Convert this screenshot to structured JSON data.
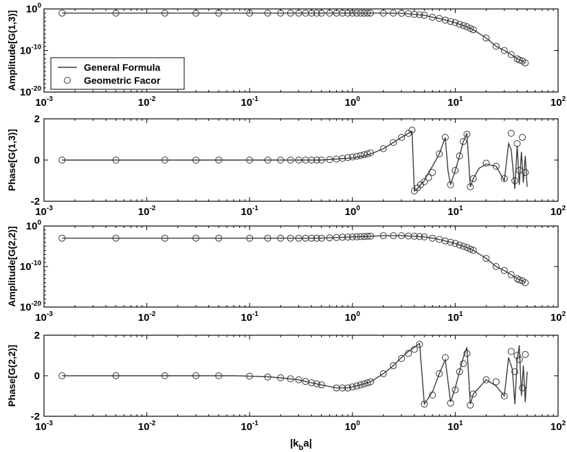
{
  "chart_data": [
    {
      "type": "line",
      "ylabel": "Amplitude[G(1,3)]",
      "xlabel": "",
      "xscale": "log",
      "yscale": "log",
      "xlim": [
        0.001,
        100
      ],
      "ylim": [
        1e-20,
        1
      ],
      "x_ticks": [
        "10-3",
        "10-2",
        "10-1",
        "100",
        "101",
        "102"
      ],
      "y_ticks": [
        "10-20",
        "10-10",
        "100"
      ],
      "grid": false,
      "legend": {
        "position": "bottom-left",
        "entries": [
          "General Formula",
          "Geometric Facor"
        ]
      },
      "series": [
        {
          "name": "General Formula",
          "style": "line",
          "x": [
            0.0015,
            0.005,
            0.015,
            0.03,
            0.05,
            0.1,
            0.2,
            0.3,
            0.4,
            0.5,
            0.7,
            1.0,
            1.5,
            2.0,
            3.0,
            4.0,
            5.0,
            6.0,
            7.0,
            8.0,
            9.0,
            10.0,
            11.0,
            12.0,
            13.0,
            14.0,
            15.0,
            20.0,
            25.0,
            30.0,
            35.0,
            40.0,
            45.0,
            48.0
          ],
          "y": [
            0.1,
            0.1,
            0.1,
            0.1,
            0.1,
            0.1,
            0.1,
            0.1,
            0.1,
            0.1,
            0.1,
            0.1,
            0.1,
            0.1,
            0.09,
            0.05,
            0.03,
            0.01,
            0.005,
            0.002,
            0.001,
            0.0005,
            0.0002,
            0.0001,
            5e-05,
            2e-05,
            1e-05,
            1e-07,
            1e-09,
            1e-10,
            1e-11,
            1e-12,
            3e-13,
            1e-13
          ]
        },
        {
          "name": "Geometric Facor",
          "style": "marker",
          "x": [
            0.0015,
            0.005,
            0.015,
            0.03,
            0.05,
            0.1,
            0.15,
            0.2,
            0.25,
            0.3,
            0.35,
            0.4,
            0.45,
            0.5,
            0.6,
            0.7,
            0.8,
            0.9,
            1.0,
            1.1,
            1.2,
            1.3,
            1.4,
            1.5,
            2.0,
            2.5,
            3.0,
            3.5,
            4.0,
            4.5,
            5.0,
            6.0,
            7.0,
            8.0,
            9.0,
            10.0,
            11.0,
            12.0,
            13.0,
            14.0,
            15.0,
            20.0,
            25.0,
            30.0,
            35.0,
            40.0,
            42.0,
            45.0,
            48.0
          ],
          "y": [
            0.1,
            0.1,
            0.1,
            0.1,
            0.1,
            0.1,
            0.1,
            0.1,
            0.1,
            0.1,
            0.1,
            0.1,
            0.1,
            0.1,
            0.1,
            0.1,
            0.1,
            0.1,
            0.1,
            0.1,
            0.1,
            0.1,
            0.1,
            0.1,
            0.1,
            0.1,
            0.09,
            0.07,
            0.05,
            0.04,
            0.03,
            0.01,
            0.005,
            0.002,
            0.001,
            0.0005,
            0.0002,
            0.0001,
            5e-05,
            2e-05,
            1e-05,
            1e-07,
            1e-09,
            1e-10,
            1e-11,
            1e-12,
            5e-13,
            3e-13,
            1e-13
          ]
        }
      ]
    },
    {
      "type": "line",
      "ylabel": "Phase[G(1,3)]",
      "xlabel": "",
      "xscale": "log",
      "yscale": "linear",
      "xlim": [
        0.001,
        100
      ],
      "ylim": [
        -2,
        2
      ],
      "x_ticks": [
        "10-3",
        "10-2",
        "10-1",
        "100",
        "101",
        "102"
      ],
      "y_ticks": [
        "-2",
        "0",
        "2"
      ],
      "grid": false,
      "series": [
        {
          "name": "General Formula",
          "style": "line",
          "x": [
            0.0015,
            0.005,
            0.015,
            0.03,
            0.05,
            0.1,
            0.2,
            0.3,
            0.4,
            0.5,
            0.7,
            1.0,
            1.3,
            1.6,
            2.0,
            2.5,
            3.0,
            3.5,
            3.8,
            4.0,
            4.3,
            4.6,
            5.0,
            5.5,
            6.0,
            7.0,
            8.0,
            8.5,
            9.0,
            10.0,
            11.0,
            12.0,
            13.0,
            14.0,
            15.0,
            17.0,
            20.0,
            25.0,
            30.0,
            33.0,
            35.0,
            38.0,
            40.0,
            42.0,
            44.0,
            46.0,
            48.0,
            50.0
          ],
          "y": [
            0,
            0,
            0,
            0,
            0,
            0,
            0,
            0,
            0,
            0,
            0.05,
            0.1,
            0.2,
            0.35,
            0.55,
            0.85,
            1.1,
            1.3,
            1.4,
            -1.5,
            -1.4,
            -1.2,
            -1.0,
            -0.6,
            -0.3,
            0.3,
            1.1,
            -0.5,
            -1.2,
            -0.5,
            0.2,
            0.9,
            1.3,
            -1.3,
            -0.9,
            -0.4,
            -0.2,
            -0.3,
            -1.0,
            0.8,
            0.5,
            -1.4,
            0.7,
            -1.2,
            0.4,
            -1.1,
            0.2,
            -1.3
          ]
        },
        {
          "name": "Geometric Facor",
          "style": "marker",
          "x": [
            0.0015,
            0.005,
            0.015,
            0.03,
            0.05,
            0.1,
            0.15,
            0.2,
            0.25,
            0.3,
            0.35,
            0.4,
            0.45,
            0.5,
            0.6,
            0.7,
            0.8,
            0.9,
            1.0,
            1.1,
            1.2,
            1.3,
            1.4,
            1.5,
            2.0,
            2.5,
            3.0,
            3.5,
            3.8,
            4.0,
            4.3,
            4.6,
            5.0,
            5.5,
            6.0,
            7.0,
            8.0,
            9.0,
            10.0,
            11.0,
            12.0,
            13.0,
            14.0,
            15.0,
            20.0,
            25.0,
            30.0,
            35.0,
            38.0,
            40.0,
            42.0,
            45.0,
            48.0
          ],
          "y": [
            0,
            0,
            0,
            0,
            0,
            0,
            0,
            0,
            0,
            0,
            0,
            0,
            0,
            0,
            0.02,
            0.05,
            0.08,
            0.12,
            0.15,
            0.18,
            0.22,
            0.26,
            0.3,
            0.35,
            0.55,
            0.85,
            1.1,
            1.3,
            1.45,
            -1.5,
            -1.35,
            -1.2,
            -1.05,
            -0.85,
            -0.6,
            0.3,
            1.1,
            -1.2,
            -0.5,
            0.2,
            0.9,
            1.25,
            -1.3,
            -0.9,
            -0.15,
            -0.3,
            -0.9,
            1.3,
            -1.0,
            0.8,
            -0.5,
            1.1,
            -0.6
          ]
        }
      ]
    },
    {
      "type": "line",
      "ylabel": "Amplitude[G(2,2)]",
      "xlabel": "",
      "xscale": "log",
      "yscale": "log",
      "xlim": [
        0.001,
        100
      ],
      "ylim": [
        1e-20,
        1
      ],
      "x_ticks": [
        "10-3",
        "10-2",
        "10-1",
        "100",
        "101",
        "102"
      ],
      "y_ticks": [
        "10-20",
        "10-10",
        "100"
      ],
      "grid": false,
      "series": [
        {
          "name": "General Formula",
          "style": "line",
          "x": [
            0.0015,
            0.005,
            0.015,
            0.03,
            0.05,
            0.1,
            0.2,
            0.3,
            0.5,
            0.7,
            1.0,
            1.5,
            2.0,
            3.0,
            4.0,
            5.0,
            6.0,
            7.0,
            8.0,
            9.0,
            10.0,
            11.0,
            12.0,
            13.0,
            14.0,
            15.0,
            20.0,
            25.0,
            30.0,
            35.0,
            40.0,
            45.0,
            48.0
          ],
          "y": [
            0.001,
            0.001,
            0.001,
            0.001,
            0.001,
            0.001,
            0.001,
            0.001,
            0.001,
            0.0015,
            0.002,
            0.003,
            0.004,
            0.004,
            0.003,
            0.002,
            0.001,
            0.0005,
            0.0002,
            0.0001,
            5e-05,
            2e-05,
            1e-05,
            5e-06,
            2e-06,
            1e-06,
            1e-08,
            1e-10,
            1e-11,
            1e-12,
            1e-13,
            3e-14,
            1e-14
          ]
        },
        {
          "name": "Geometric Facor",
          "style": "marker",
          "x": [
            0.0015,
            0.005,
            0.015,
            0.03,
            0.05,
            0.1,
            0.15,
            0.2,
            0.25,
            0.3,
            0.35,
            0.4,
            0.45,
            0.5,
            0.6,
            0.7,
            0.8,
            0.9,
            1.0,
            1.1,
            1.2,
            1.3,
            1.4,
            1.5,
            2.0,
            2.5,
            3.0,
            3.5,
            4.0,
            4.5,
            5.0,
            6.0,
            7.0,
            8.0,
            9.0,
            10.0,
            11.0,
            12.0,
            13.0,
            14.0,
            15.0,
            20.0,
            25.0,
            30.0,
            35.0,
            40.0,
            42.0,
            45.0,
            48.0
          ],
          "y": [
            0.001,
            0.001,
            0.001,
            0.001,
            0.001,
            0.001,
            0.001,
            0.001,
            0.001,
            0.001,
            0.001,
            0.001,
            0.001,
            0.001,
            0.0012,
            0.0015,
            0.0017,
            0.0019,
            0.002,
            0.0022,
            0.0025,
            0.0027,
            0.003,
            0.003,
            0.004,
            0.004,
            0.004,
            0.0035,
            0.003,
            0.0025,
            0.002,
            0.001,
            0.0005,
            0.0002,
            0.0001,
            5e-05,
            2e-05,
            1e-05,
            5e-06,
            2e-06,
            1e-06,
            1e-08,
            1e-10,
            1e-11,
            1e-12,
            1e-13,
            5e-14,
            3e-14,
            1e-14
          ]
        }
      ]
    },
    {
      "type": "line",
      "ylabel": "Phase[G(2,2)]",
      "xlabel": "|kba|",
      "xlabel_main": "|k",
      "xlabel_sub": "b",
      "xlabel_tail": "a|",
      "xscale": "log",
      "yscale": "linear",
      "xlim": [
        0.001,
        100
      ],
      "ylim": [
        -2,
        2
      ],
      "x_ticks": [
        "10-3",
        "10-2",
        "10-1",
        "100",
        "101",
        "102"
      ],
      "y_ticks": [
        "-2",
        "0",
        "2"
      ],
      "grid": false,
      "series": [
        {
          "name": "General Formula",
          "style": "line",
          "x": [
            0.0015,
            0.005,
            0.015,
            0.03,
            0.05,
            0.07,
            0.1,
            0.15,
            0.2,
            0.3,
            0.4,
            0.5,
            0.7,
            0.9,
            1.0,
            1.2,
            1.5,
            2.0,
            2.5,
            3.0,
            3.5,
            4.0,
            4.5,
            5.0,
            6.0,
            7.0,
            8.0,
            9.0,
            10.0,
            11.0,
            12.0,
            13.0,
            14.0,
            15.0,
            20.0,
            25.0,
            30.0,
            33.0,
            36.0,
            38.0,
            40.0,
            42.0,
            44.0,
            46.0,
            48.0,
            50.0
          ],
          "y": [
            0,
            0,
            0,
            0,
            0,
            0,
            -0.02,
            -0.05,
            -0.1,
            -0.2,
            -0.35,
            -0.45,
            -0.6,
            -0.6,
            -0.55,
            -0.45,
            -0.3,
            0.1,
            0.5,
            0.9,
            1.2,
            1.4,
            1.6,
            -1.4,
            -0.8,
            0.1,
            0.8,
            -1.3,
            -0.6,
            0.2,
            0.9,
            1.4,
            -1.4,
            -0.9,
            -0.2,
            -0.5,
            -1.0,
            0.9,
            0.3,
            -1.4,
            0.8,
            1.5,
            -1.0,
            0.5,
            -1.3,
            0.2
          ]
        },
        {
          "name": "Geometric Facor",
          "style": "marker",
          "x": [
            0.0015,
            0.005,
            0.015,
            0.03,
            0.05,
            0.1,
            0.15,
            0.2,
            0.25,
            0.3,
            0.35,
            0.4,
            0.45,
            0.5,
            0.7,
            0.8,
            0.9,
            1.0,
            1.1,
            1.2,
            1.3,
            1.4,
            1.5,
            2.0,
            2.5,
            3.0,
            3.5,
            4.0,
            4.5,
            5.0,
            6.0,
            7.0,
            8.0,
            9.0,
            10.0,
            11.0,
            12.0,
            13.0,
            14.0,
            15.0,
            20.0,
            25.0,
            30.0,
            35.0,
            38.0,
            40.0,
            42.0,
            45.0,
            48.0
          ],
          "y": [
            0,
            0,
            0,
            0,
            0,
            -0.02,
            -0.06,
            -0.1,
            -0.15,
            -0.2,
            -0.28,
            -0.35,
            -0.4,
            -0.45,
            -0.6,
            -0.6,
            -0.6,
            -0.55,
            -0.5,
            -0.45,
            -0.4,
            -0.35,
            -0.3,
            0.1,
            0.5,
            0.85,
            1.1,
            1.3,
            1.55,
            -1.4,
            -0.95,
            0.1,
            0.9,
            -1.35,
            -0.7,
            0.2,
            0.6,
            1.1,
            -1.45,
            -0.9,
            -0.2,
            -0.3,
            -1.0,
            1.2,
            0.2,
            1.0,
            0.8,
            -0.6,
            1.05
          ]
        }
      ]
    }
  ]
}
